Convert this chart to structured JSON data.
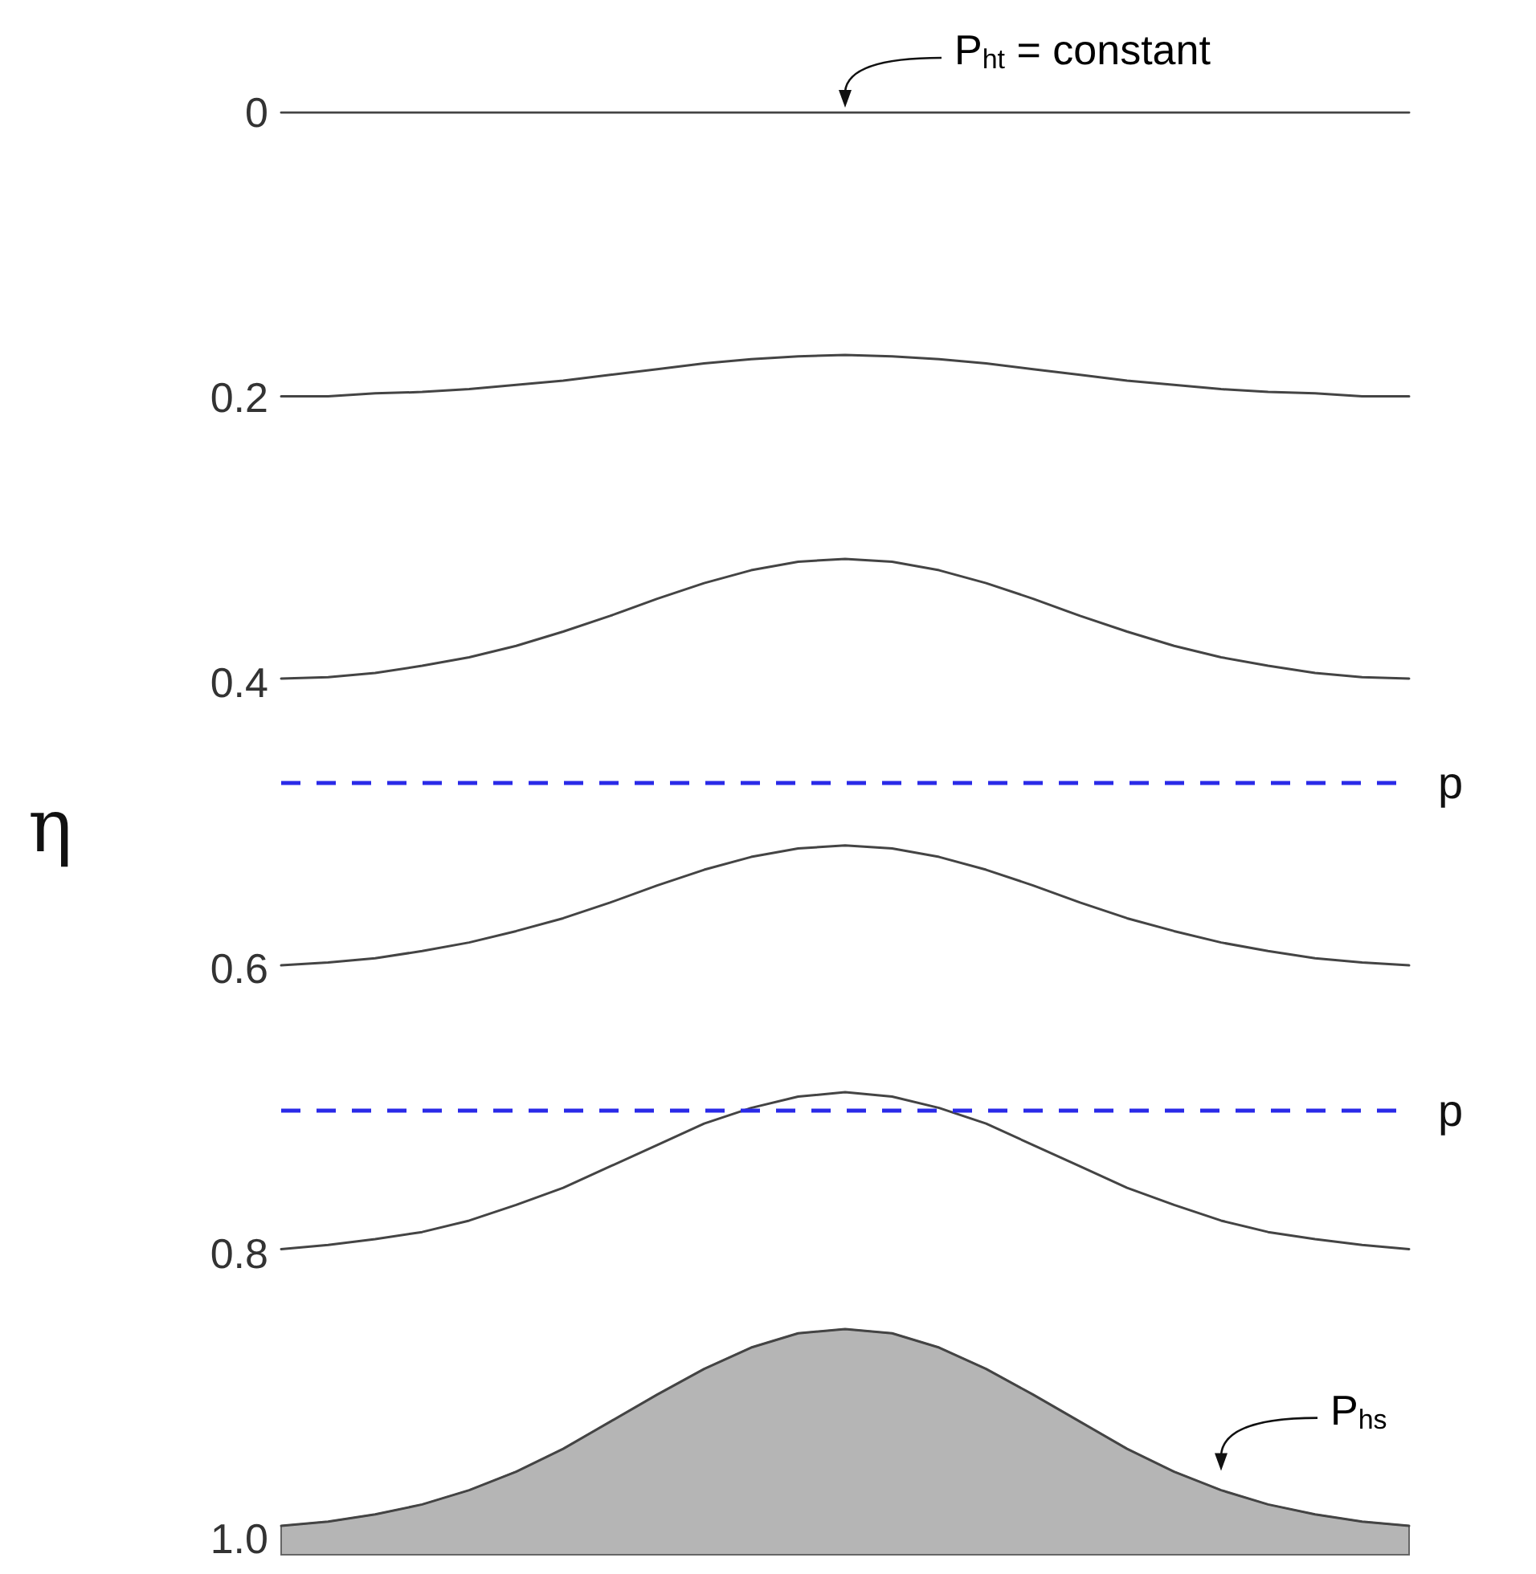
{
  "chart_data": {
    "type": "line",
    "ylabel": "η",
    "categories": [
      null,
      null,
      null,
      null,
      null,
      null,
      null,
      null,
      null,
      null,
      null,
      null,
      null,
      null,
      null,
      null,
      null,
      null,
      null,
      null,
      null,
      null,
      null,
      null,
      null
    ],
    "series": [
      {
        "color": "#444444",
        "values": [
          0,
          0,
          0,
          0,
          0,
          0,
          0,
          0,
          0,
          0,
          0,
          0,
          0,
          0,
          0,
          0,
          0,
          0,
          0,
          0,
          0,
          0,
          0,
          0,
          0
        ]
      },
      {
        "color": "#444444",
        "values": [
          0.199,
          0.199,
          0.197,
          0.196,
          0.194,
          0.191,
          0.188,
          0.184,
          0.18,
          0.176,
          0.173,
          0.171,
          0.17,
          0.171,
          0.173,
          0.176,
          0.18,
          0.184,
          0.188,
          0.191,
          0.194,
          0.196,
          0.197,
          0.199,
          0.199
        ]
      },
      {
        "color": "#444444",
        "values": [
          0.397,
          0.396,
          0.393,
          0.388,
          0.382,
          0.374,
          0.364,
          0.353,
          0.341,
          0.33,
          0.321,
          0.315,
          0.313,
          0.315,
          0.321,
          0.33,
          0.341,
          0.353,
          0.364,
          0.374,
          0.382,
          0.388,
          0.393,
          0.396,
          0.397
        ]
      },
      {
        "color": "#444444",
        "values": [
          0.598,
          0.596,
          0.593,
          0.588,
          0.582,
          0.574,
          0.565,
          0.554,
          0.542,
          0.531,
          0.522,
          0.516,
          0.514,
          0.516,
          0.522,
          0.531,
          0.542,
          0.554,
          0.565,
          0.574,
          0.582,
          0.588,
          0.593,
          0.596,
          0.598
        ]
      },
      {
        "color": "#444444",
        "values": [
          0.797,
          0.794,
          0.79,
          0.785,
          0.777,
          0.766,
          0.754,
          0.739,
          0.724,
          0.709,
          0.698,
          0.69,
          0.687,
          0.69,
          0.698,
          0.709,
          0.724,
          0.739,
          0.754,
          0.766,
          0.777,
          0.785,
          0.79,
          0.794,
          0.797
        ]
      },
      {
        "color": "#444444",
        "values": [
          0.991,
          0.988,
          0.983,
          0.976,
          0.966,
          0.953,
          0.937,
          0.918,
          0.899,
          0.881,
          0.866,
          0.856,
          0.853,
          0.856,
          0.866,
          0.881,
          0.899,
          0.918,
          0.937,
          0.953,
          0.966,
          0.976,
          0.983,
          0.988,
          0.991
        ]
      }
    ],
    "ylim": [
      1.0,
      0
    ],
    "yticks": [
      0,
      0.2,
      0.4,
      0.6,
      0.8,
      {
        "value": 1,
        "label": "1.0"
      }
    ],
    "tick_labels": "y",
    "grid": false,
    "marker": "none",
    "line_style": "solid",
    "ref_lines": [
      {
        "axis": "y",
        "value": 0.475,
        "label": "p",
        "color": "#2a2ae8",
        "line_style": "dashed"
      },
      {
        "axis": "y",
        "value": 0.7,
        "label": "p",
        "color": "#2a2ae8",
        "line_style": "dashed"
      }
    ],
    "annotations": [
      "P$_{ht}$ = constant",
      "P$_{hs}$"
    ]
  }
}
